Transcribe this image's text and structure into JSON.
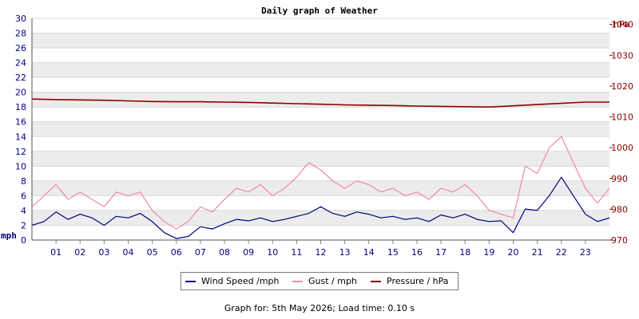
{
  "chart_data": {
    "type": "line",
    "title": "Daily graph of Weather",
    "ylabel_left": "mph",
    "ylabel_right": "hPa",
    "x_tick_labels": [
      "01",
      "02",
      "03",
      "04",
      "05",
      "06",
      "07",
      "08",
      "09",
      "10",
      "11",
      "12",
      "13",
      "14",
      "15",
      "16",
      "17",
      "18",
      "19",
      "20",
      "21",
      "22",
      "23"
    ],
    "xlim": [
      0,
      24
    ],
    "ylim_left": [
      0,
      30
    ],
    "y_ticks_left": [
      0,
      2,
      4,
      6,
      8,
      10,
      12,
      14,
      16,
      18,
      20,
      22,
      24,
      26,
      28,
      30
    ],
    "ylim_right": [
      970,
      1042
    ],
    "y_ticks_right": [
      970,
      980,
      990,
      1000,
      1010,
      1020,
      1030,
      1040
    ],
    "grid": true,
    "legend_position": "bottom-center",
    "series": [
      {
        "name": "Wind Speed /mph",
        "axis": "left",
        "color": "#000080",
        "x": [
          0,
          0.5,
          1,
          1.5,
          2,
          2.5,
          3,
          3.5,
          4,
          4.5,
          5,
          5.5,
          6,
          6.5,
          7,
          7.5,
          8,
          8.5,
          9,
          9.5,
          10,
          10.5,
          11,
          11.5,
          12,
          12.5,
          13,
          13.5,
          14,
          14.5,
          15,
          15.5,
          16,
          16.5,
          17,
          17.5,
          18,
          18.5,
          19,
          19.5,
          20,
          20.5,
          21,
          21.5,
          22,
          22.5,
          23,
          23.5,
          24
        ],
        "values": [
          2.0,
          2.5,
          3.8,
          2.8,
          3.5,
          3.0,
          2.0,
          3.2,
          3.0,
          3.6,
          2.5,
          1.0,
          0.2,
          0.5,
          1.8,
          1.5,
          2.2,
          2.8,
          2.6,
          3.0,
          2.5,
          2.8,
          3.2,
          3.6,
          4.5,
          3.6,
          3.2,
          3.8,
          3.5,
          3.0,
          3.2,
          2.8,
          3.0,
          2.5,
          3.4,
          3.0,
          3.5,
          2.8,
          2.5,
          2.6,
          1.0,
          4.2,
          4.0,
          6.0,
          8.5,
          6.0,
          3.5,
          2.5,
          3.0
        ]
      },
      {
        "name": "Gust / mph",
        "axis": "left",
        "color": "#f487a8",
        "x": [
          0,
          0.5,
          1,
          1.5,
          2,
          2.5,
          3,
          3.5,
          4,
          4.5,
          5,
          5.5,
          6,
          6.5,
          7,
          7.5,
          8,
          8.5,
          9,
          9.5,
          10,
          10.5,
          11,
          11.5,
          12,
          12.5,
          13,
          13.5,
          14,
          14.5,
          15,
          15.5,
          16,
          16.5,
          17,
          17.5,
          18,
          18.5,
          19,
          19.5,
          20,
          20.5,
          21,
          21.5,
          22,
          22.5,
          23,
          23.5,
          24
        ],
        "values": [
          4.5,
          6.0,
          7.5,
          5.5,
          6.5,
          5.5,
          4.5,
          6.5,
          6.0,
          6.5,
          4.0,
          2.5,
          1.5,
          2.5,
          4.5,
          3.8,
          5.5,
          7.0,
          6.5,
          7.5,
          6.0,
          7.0,
          8.5,
          10.5,
          9.5,
          8.0,
          7.0,
          8.0,
          7.5,
          6.5,
          7.0,
          6.0,
          6.5,
          5.5,
          7.0,
          6.5,
          7.5,
          6.0,
          4.0,
          3.5,
          3.0,
          10.0,
          9.0,
          12.5,
          14.0,
          10.5,
          7.0,
          5.0,
          7.0
        ]
      },
      {
        "name": "Pressure / hPa",
        "axis": "right",
        "color": "#8b0000",
        "x": [
          0,
          1,
          2,
          3,
          4,
          5,
          6,
          7,
          8,
          9,
          10,
          11,
          12,
          13,
          14,
          15,
          16,
          17,
          18,
          19,
          20,
          21,
          22,
          23,
          24
        ],
        "values": [
          1015.8,
          1015.6,
          1015.5,
          1015.4,
          1015.2,
          1015.0,
          1014.9,
          1014.9,
          1014.8,
          1014.7,
          1014.5,
          1014.3,
          1014.1,
          1013.9,
          1013.8,
          1013.7,
          1013.5,
          1013.4,
          1013.3,
          1013.2,
          1013.6,
          1014.0,
          1014.4,
          1014.8,
          1014.8
        ]
      }
    ]
  },
  "legend": {
    "wind_label": "Wind Speed /mph",
    "gust_label": "Gust / mph",
    "pressure_label": "Pressure / hPa"
  },
  "footer": {
    "text": "Graph for: 5th May 2026; Load time: 0.10 s"
  }
}
